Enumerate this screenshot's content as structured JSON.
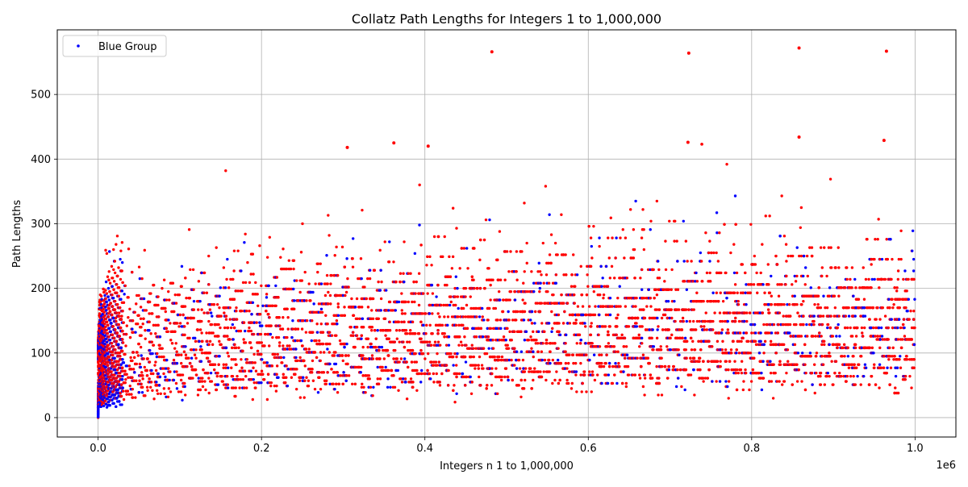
{
  "chart_data": {
    "type": "scatter",
    "title": "Collatz Path Lengths for Integers 1 to 1,000,000",
    "xlabel": "Integers n 1 to 1,000,000",
    "ylabel": "Path Lengths",
    "x_offset_label": "1e6",
    "xlim": [
      -50000,
      1050000
    ],
    "ylim": [
      -30,
      600
    ],
    "x_ticks": [
      0,
      200000,
      400000,
      600000,
      800000,
      1000000
    ],
    "x_tick_labels": [
      "0.0",
      "0.2",
      "0.4",
      "0.6",
      "0.8",
      "1.0"
    ],
    "y_ticks": [
      0,
      100,
      200,
      300,
      400,
      500
    ],
    "y_tick_labels": [
      "0",
      "100",
      "200",
      "300",
      "400",
      "500"
    ],
    "grid": true,
    "legend_position": "top-left",
    "series": [
      {
        "name": "Blue Group",
        "color": "#0000ff",
        "note": "points drawn in blue; interleaved with red points",
        "approx_max_y": 400
      },
      {
        "color": "#ff0000",
        "approx_max_y": 572
      }
    ],
    "notable_points": [
      {
        "x": 482000,
        "y": 566,
        "color": "#ff0000"
      },
      {
        "x": 723000,
        "y": 564,
        "color": "#ff0000"
      },
      {
        "x": 858000,
        "y": 572,
        "color": "#ff0000"
      },
      {
        "x": 965000,
        "y": 567,
        "color": "#ff0000"
      },
      {
        "x": 362000,
        "y": 425,
        "color": "#ff0000"
      },
      {
        "x": 305000,
        "y": 418,
        "color": "#ff0000"
      },
      {
        "x": 404000,
        "y": 420,
        "color": "#ff0000"
      },
      {
        "x": 722000,
        "y": 426,
        "color": "#ff0000"
      },
      {
        "x": 858000,
        "y": 434,
        "color": "#ff0000"
      },
      {
        "x": 962000,
        "y": 429,
        "color": "#ff0000"
      }
    ]
  }
}
